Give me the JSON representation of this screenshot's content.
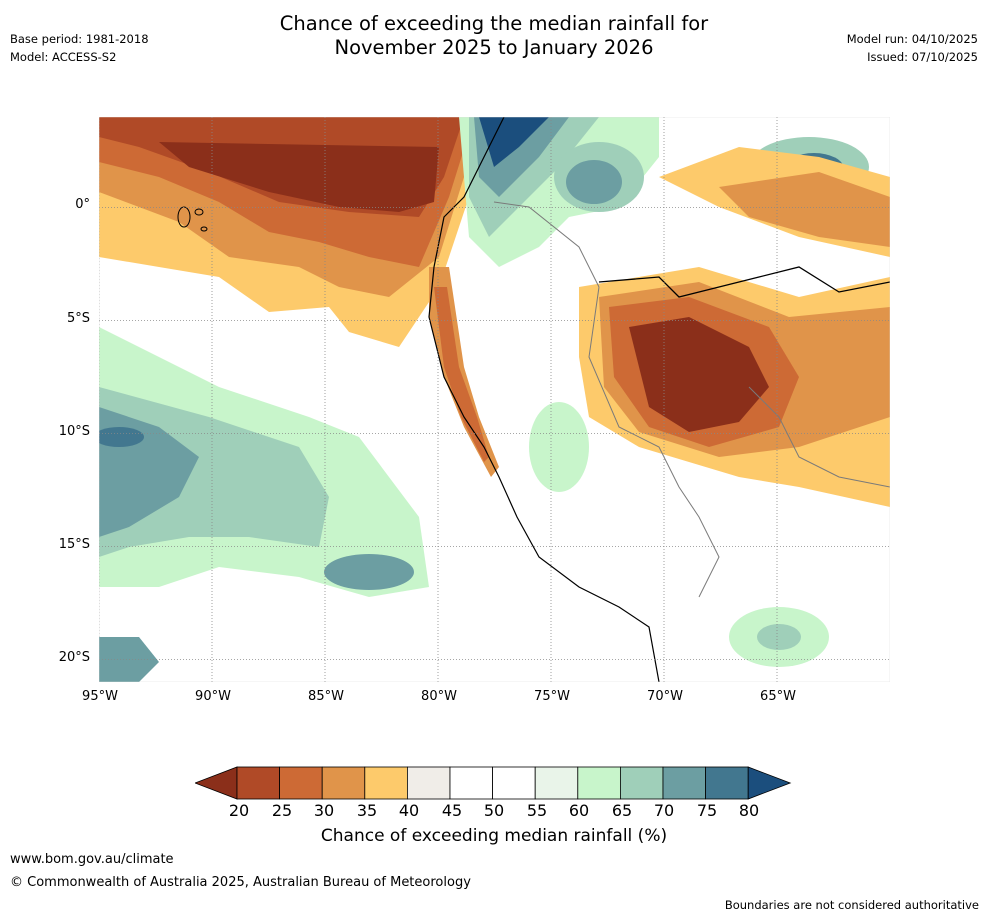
{
  "title": {
    "line1": "Chance of exceeding the median rainfall for",
    "line2": "November 2025 to January 2026"
  },
  "meta_left": {
    "base_period": "Base period: 1981-2018",
    "model": "Model: ACCESS-S2"
  },
  "meta_right": {
    "model_run": "Model run: 04/10/2025",
    "issued": "Issued: 07/10/2025"
  },
  "map": {
    "lat_labels": [
      "0°",
      "5°S",
      "10°S",
      "15°S",
      "20°S"
    ],
    "lon_labels": [
      "95°W",
      "90°W",
      "85°W",
      "80°W",
      "75°W",
      "70°W",
      "65°W"
    ],
    "lat_values": [
      0,
      -5,
      -10,
      -15,
      -20
    ],
    "lon_values": [
      -95,
      -90,
      -85,
      -80,
      -75,
      -70,
      -65
    ]
  },
  "colorbar": {
    "ticks": [
      "20",
      "25",
      "30",
      "35",
      "40",
      "45",
      "50",
      "55",
      "60",
      "65",
      "70",
      "75",
      "80"
    ],
    "colors": [
      "#8b2f1a",
      "#b04a27",
      "#cd6a35",
      "#e0944a",
      "#fdca6b",
      "#f0ede8",
      "#ffffff",
      "#ffffff",
      "#e9f4e9",
      "#c8f5cb",
      "#9fcfb9",
      "#6c9ea2",
      "#42778f",
      "#1b4e7d"
    ],
    "label": "Chance of exceeding median rainfall (%)"
  },
  "footer": {
    "url": "www.bom.gov.au/climate",
    "copyright": "© Commonwealth of Australia 2025, Australian Bureau of Meteorology",
    "disclaimer": "Boundaries are not considered authoritative"
  }
}
